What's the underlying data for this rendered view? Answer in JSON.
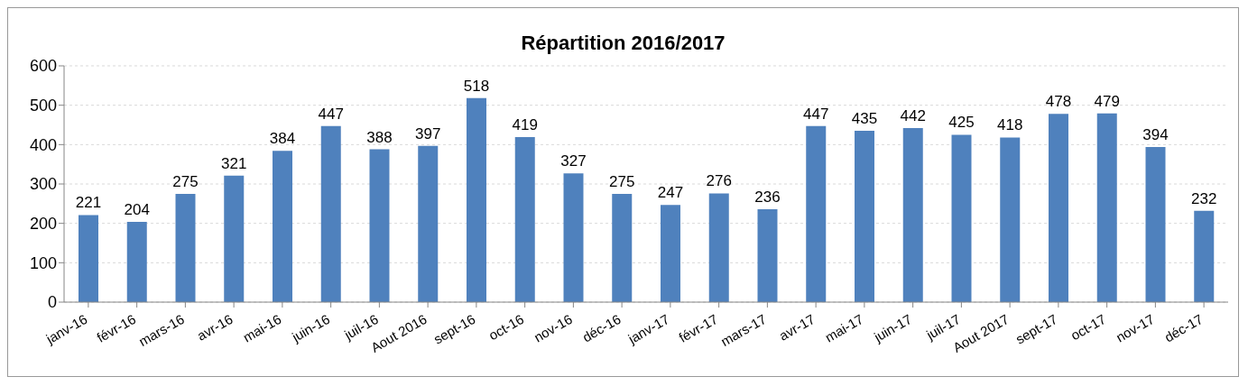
{
  "chart_data": {
    "type": "bar",
    "title": "Répartition 2016/2017",
    "categories": [
      "janv-16",
      "févr-16",
      "mars-16",
      "avr-16",
      "mai-16",
      "juin-16",
      "juil-16",
      "Aout 2016",
      "sept-16",
      "oct-16",
      "nov-16",
      "déc-16",
      "janv-17",
      "févr-17",
      "mars-17",
      "avr-17",
      "mai-17",
      "juin-17",
      "juil-17",
      "Aout 2017",
      "sept-17",
      "oct-17",
      "nov-17",
      "déc-17"
    ],
    "values": [
      221,
      204,
      275,
      321,
      384,
      447,
      388,
      397,
      518,
      419,
      327,
      275,
      247,
      276,
      236,
      447,
      435,
      442,
      425,
      418,
      478,
      479,
      394,
      232
    ],
    "color": "#4f81bd",
    "ylim": [
      0,
      600
    ],
    "yticks": [
      0,
      100,
      200,
      300,
      400,
      500,
      600
    ],
    "grid": "y",
    "data_labels": true
  }
}
